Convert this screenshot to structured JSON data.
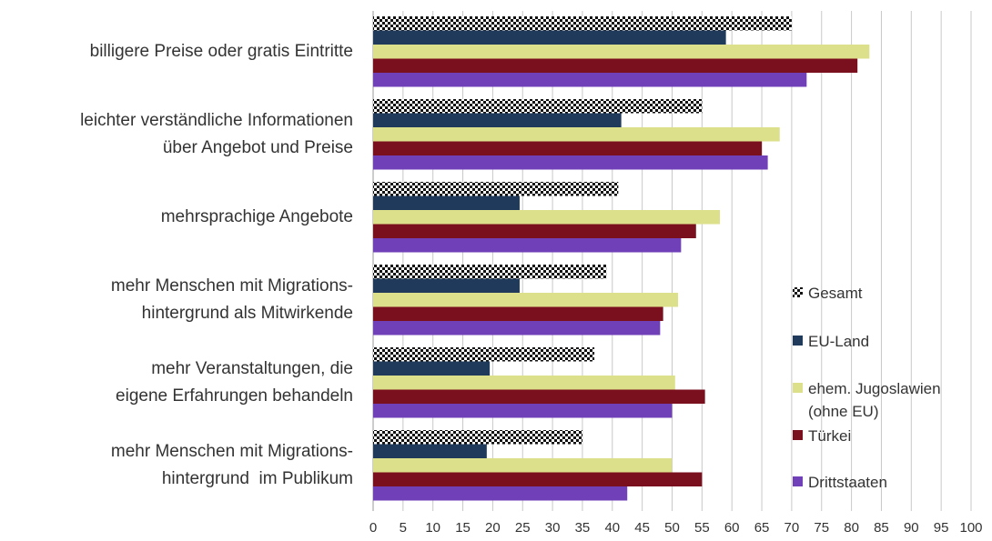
{
  "chart_data": {
    "type": "bar",
    "orientation": "horizontal",
    "categories": [
      "billigere Preise oder gratis Eintritte",
      "leichter verständliche Informationen\nüber Angebot und Preise",
      "mehrsprachige Angebote",
      "mehr Menschen mit Migrations-\nhintergrund als Mitwirkende",
      "mehr Veranstaltungen, die\neigene Erfahrungen behandeln",
      "mehr Menschen mit Migrations-\nhintergrund  im Publikum"
    ],
    "series": [
      {
        "name": "Gesamt",
        "color": "#000000",
        "pattern": "checkerboard",
        "values": [
          70,
          55,
          41,
          39,
          37,
          35
        ]
      },
      {
        "name": "EU-Land",
        "color": "#1f3a5a",
        "values": [
          59,
          41.5,
          24.5,
          24.5,
          19.5,
          19
        ]
      },
      {
        "name": "ehem. Jugoslawien\n(ohne EU)",
        "color": "#dde08a",
        "values": [
          83,
          68,
          58,
          51,
          50.5,
          50
        ]
      },
      {
        "name": "Türkei",
        "color": "#7a0f1e",
        "values": [
          81,
          65,
          54,
          48.5,
          55.5,
          55
        ]
      },
      {
        "name": "Drittstaaten",
        "color": "#7040b8",
        "values": [
          72.5,
          66,
          51.5,
          48,
          50,
          42.5
        ]
      }
    ],
    "xlim": [
      0,
      100
    ],
    "xticks": [
      0,
      5,
      10,
      15,
      20,
      25,
      30,
      35,
      40,
      45,
      50,
      55,
      60,
      65,
      70,
      75,
      80,
      85,
      90,
      95,
      100
    ],
    "grid": true,
    "legend": "right"
  }
}
